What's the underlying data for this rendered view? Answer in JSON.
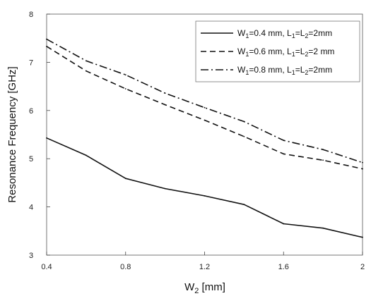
{
  "chart_data": {
    "type": "line",
    "xlabel": "W2  [mm]",
    "ylabel": "Resonance Frequency  [GHz]",
    "xlim": [
      0.4,
      2.0
    ],
    "ylim": [
      3,
      8
    ],
    "xticks": [
      "0.4",
      "0.8",
      "1.2",
      "1.6",
      "2"
    ],
    "yticks": [
      "3",
      "4",
      "5",
      "6",
      "7",
      "8"
    ],
    "grid": false,
    "legend_position": "top-right",
    "x": [
      0.4,
      0.6,
      0.8,
      1.0,
      1.2,
      1.4,
      1.6,
      1.8,
      2.0
    ],
    "series": [
      {
        "name": "W1=0.4 mm, L1=L2=2mm",
        "style": "solid",
        "values": [
          5.43,
          5.07,
          4.59,
          4.38,
          4.23,
          4.05,
          3.65,
          3.56,
          3.37
        ]
      },
      {
        "name": "W1=0.6 mm, L1=L2=2 mm",
        "style": "dashed",
        "values": [
          7.33,
          6.82,
          6.45,
          6.12,
          5.8,
          5.46,
          5.1,
          4.97,
          4.79
        ]
      },
      {
        "name": "W1=0.8 mm, L1=L2=2mm",
        "style": "dashdot",
        "values": [
          7.48,
          7.03,
          6.74,
          6.36,
          6.06,
          5.77,
          5.38,
          5.19,
          4.92
        ]
      }
    ],
    "colors": {
      "line": "#111111",
      "frame": "#555555"
    }
  }
}
